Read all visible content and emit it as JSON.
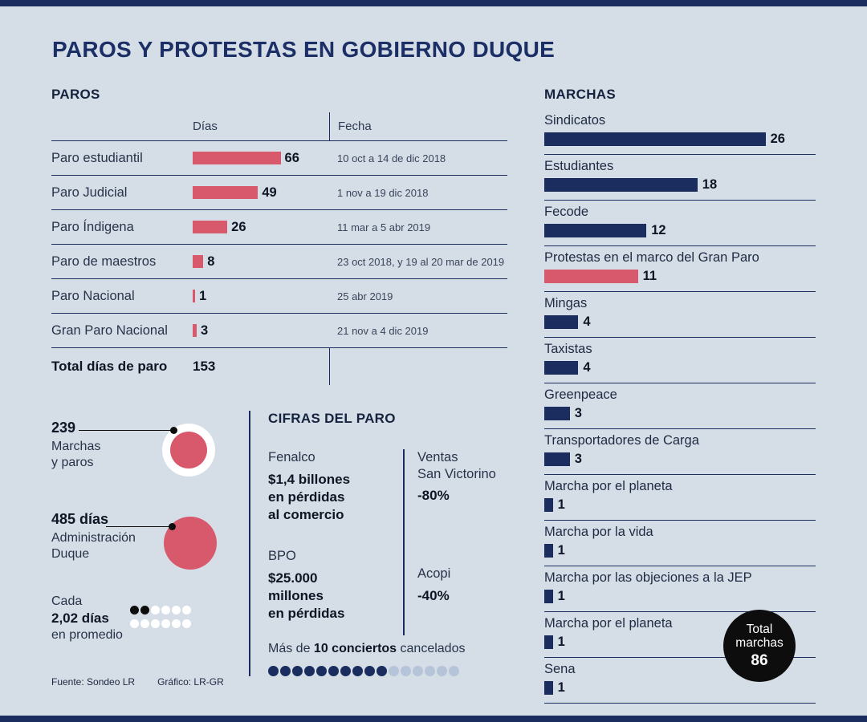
{
  "title": "PAROS Y PROTESTAS EN GOBIERNO DUQUE",
  "colors": {
    "background": "#d5dee7",
    "navy": "#1b2d5e",
    "red": "#d8596b",
    "black": "#0d0d0d",
    "light_dot": "#b5c4d8",
    "white": "#ffffff"
  },
  "paros": {
    "heading": "PAROS",
    "col_dias": "Días",
    "col_fecha": "Fecha",
    "bar_color": "#d8596b",
    "rows": [
      {
        "label": "Paro estudiantil",
        "dias": 66,
        "fecha": "10 oct a 14 de dic 2018"
      },
      {
        "label": "Paro Judicial",
        "dias": 49,
        "fecha": "1 nov a 19 dic 2018"
      },
      {
        "label": "Paro Índigena",
        "dias": 26,
        "fecha": "11 mar a 5 abr 2019"
      },
      {
        "label": "Paro de maestros",
        "dias": 8,
        "fecha": "23 oct 2018, y 19 al 20 mar de 2019"
      },
      {
        "label": "Paro Nacional",
        "dias": 1,
        "fecha": "25 abr 2019"
      },
      {
        "label": "Gran Paro Nacional",
        "dias": 3,
        "fecha": "21 nov a 4 dic 2019"
      }
    ],
    "total_label": "Total días de paro",
    "total_value": "153"
  },
  "stats": {
    "marchas_paros": {
      "value": "239",
      "label": "Marchas\ny paros"
    },
    "duque": {
      "value": "485 días",
      "label": "Administración\nDuque"
    },
    "promedio": {
      "line1": "Cada",
      "line2": "2,02 días",
      "line3": "en promedio",
      "dots_row1": [
        1,
        1,
        0,
        0,
        0,
        0
      ],
      "dots_row2": [
        0,
        0,
        0,
        0,
        0,
        0
      ]
    }
  },
  "cifras": {
    "heading": "CIFRAS DEL PARO",
    "fenalco_org": "Fenalco",
    "fenalco_value": "$1,4 billones\nen pérdidas\nal comercio",
    "ventas_org": "Ventas\nSan Victorino",
    "ventas_value": "-80%",
    "bpo_org": "BPO",
    "bpo_value": "$25.000\nmillones\nen pérdidas",
    "acopi_org": "Acopi",
    "acopi_value": "-40%",
    "conciertos_prefix": "Más de",
    "conciertos_bold": "10 conciertos",
    "conciertos_suffix": "cancelados",
    "conciertos_dots": [
      1,
      1,
      1,
      1,
      1,
      1,
      1,
      1,
      1,
      1,
      0,
      0,
      0,
      0,
      0,
      0
    ]
  },
  "marchas": {
    "heading": "MARCHAS",
    "items": [
      {
        "label": "Sindicatos",
        "value": 26,
        "color": "#1b2d5e"
      },
      {
        "label": "Estudiantes",
        "value": 18,
        "color": "#1b2d5e"
      },
      {
        "label": "Fecode",
        "value": 12,
        "color": "#1b2d5e"
      },
      {
        "label": "Protestas en el marco del Gran Paro",
        "value": 11,
        "color": "#d8596b"
      },
      {
        "label": "Mingas",
        "value": 4,
        "color": "#1b2d5e"
      },
      {
        "label": "Taxistas",
        "value": 4,
        "color": "#1b2d5e"
      },
      {
        "label": "Greenpeace",
        "value": 3,
        "color": "#1b2d5e"
      },
      {
        "label": "Transportadores de Carga",
        "value": 3,
        "color": "#1b2d5e"
      },
      {
        "label": "Marcha por el planeta",
        "value": 1,
        "color": "#1b2d5e"
      },
      {
        "label": "Marcha por la vida",
        "value": 1,
        "color": "#1b2d5e"
      },
      {
        "label": "Marcha por las objeciones a la JEP",
        "value": 1,
        "color": "#1b2d5e"
      },
      {
        "label": "Marcha por el planeta",
        "value": 1,
        "color": "#1b2d5e"
      },
      {
        "label": "Sena",
        "value": 1,
        "color": "#1b2d5e"
      }
    ],
    "total": {
      "line1": "Total",
      "line2": "marchas",
      "value": "86"
    }
  },
  "footer": {
    "fuente": "Fuente: Sondeo LR",
    "grafico": "Gráfico: LR-GR"
  },
  "chart_data": [
    {
      "type": "bar",
      "orientation": "horizontal",
      "title": "PAROS",
      "xlabel": "Días",
      "ylabel": "",
      "categories": [
        "Paro estudiantil",
        "Paro Judicial",
        "Paro Índigena",
        "Paro de maestros",
        "Paro Nacional",
        "Gran Paro Nacional"
      ],
      "values": [
        66,
        49,
        26,
        8,
        1,
        3
      ],
      "annotations": [
        "10 oct a 14 de dic 2018",
        "1 nov a 19 dic 2018",
        "11 mar a 5 abr 2019",
        "23 oct 2018, y 19 al 20 mar de 2019",
        "25 abr 2019",
        "21 nov a 4 dic 2019"
      ],
      "total": {
        "label": "Total días de paro",
        "value": 153
      },
      "bar_color": "#d8596b",
      "grid": false,
      "legend": "none"
    },
    {
      "type": "bar",
      "orientation": "horizontal",
      "title": "MARCHAS",
      "xlabel": "",
      "ylabel": "",
      "categories": [
        "Sindicatos",
        "Estudiantes",
        "Fecode",
        "Protestas en el marco del Gran Paro",
        "Mingas",
        "Taxistas",
        "Greenpeace",
        "Transportadores de Carga",
        "Marcha por el planeta",
        "Marcha por la vida",
        "Marcha por las objeciones a la JEP",
        "Marcha por el planeta",
        "Sena"
      ],
      "values": [
        26,
        18,
        12,
        11,
        4,
        4,
        3,
        3,
        1,
        1,
        1,
        1,
        1
      ],
      "bar_colors": [
        "#1b2d5e",
        "#1b2d5e",
        "#1b2d5e",
        "#d8596b",
        "#1b2d5e",
        "#1b2d5e",
        "#1b2d5e",
        "#1b2d5e",
        "#1b2d5e",
        "#1b2d5e",
        "#1b2d5e",
        "#1b2d5e",
        "#1b2d5e"
      ],
      "total": {
        "label": "Total marchas",
        "value": 86
      },
      "grid": false,
      "legend": "none"
    },
    {
      "type": "table",
      "title": "CIFRAS DEL PARO",
      "rows": [
        {
          "entity": "Fenalco",
          "value": "$1,4 billones en pérdidas al comercio"
        },
        {
          "entity": "Ventas San Victorino",
          "value": "-80%"
        },
        {
          "entity": "BPO",
          "value": "$25.000 millones en pérdidas"
        },
        {
          "entity": "Acopi",
          "value": "-40%"
        },
        {
          "entity": "Conciertos",
          "value": "Más de 10 conciertos cancelados"
        }
      ]
    },
    {
      "type": "table",
      "title": "Cifras clave",
      "rows": [
        {
          "entity": "Marchas y paros",
          "value": 239
        },
        {
          "entity": "Días Administración Duque",
          "value": 485
        },
        {
          "entity": "Promedio",
          "value": "Cada 2,02 días"
        }
      ]
    }
  ]
}
